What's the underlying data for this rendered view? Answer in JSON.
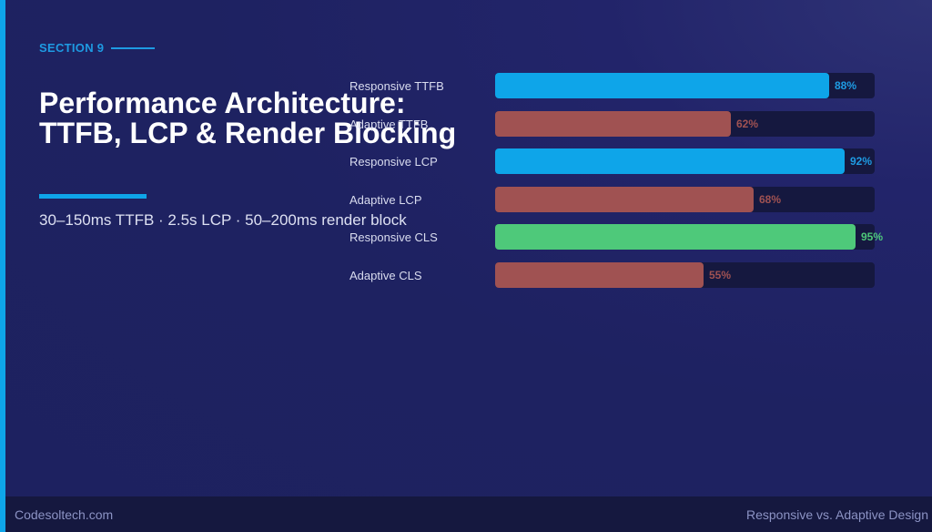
{
  "section": {
    "label": "SECTION 9"
  },
  "title": "Performance Architecture: TTFB, LCP & Render Blocking",
  "subtitle": "30–150ms TTFB · 2.5s LCP · 50–200ms render block",
  "colors": {
    "responsive": "#0ea5e9",
    "adaptive": "#a05252",
    "cls_good": "#4ec97a",
    "track": "#15183f",
    "accent": "#0ea5e9"
  },
  "chart_data": {
    "type": "bar",
    "orientation": "horizontal",
    "title": "Performance Architecture: TTFB, LCP & Render Blocking",
    "categories": [
      "Responsive TTFB",
      "Adaptive TTFB",
      "Responsive LCP",
      "Adaptive LCP",
      "Responsive CLS",
      "Adaptive CLS"
    ],
    "values": [
      88,
      62,
      92,
      68,
      95,
      55
    ],
    "value_labels": [
      "88%",
      "62%",
      "92%",
      "68%",
      "95%",
      "55%"
    ],
    "bar_colors": [
      "#0ea5e9",
      "#a05252",
      "#0ea5e9",
      "#a05252",
      "#4ec97a",
      "#a05252"
    ],
    "label_colors": [
      "#1e9be3",
      "#a05252",
      "#1e9be3",
      "#a05252",
      "#4ec97a",
      "#a05252"
    ],
    "xlim": [
      0,
      100
    ],
    "xlabel": "",
    "ylabel": "",
    "grid": false,
    "legend": null
  },
  "footer": {
    "left": "Codesoltech.com",
    "right": "Responsive vs. Adaptive Design"
  }
}
